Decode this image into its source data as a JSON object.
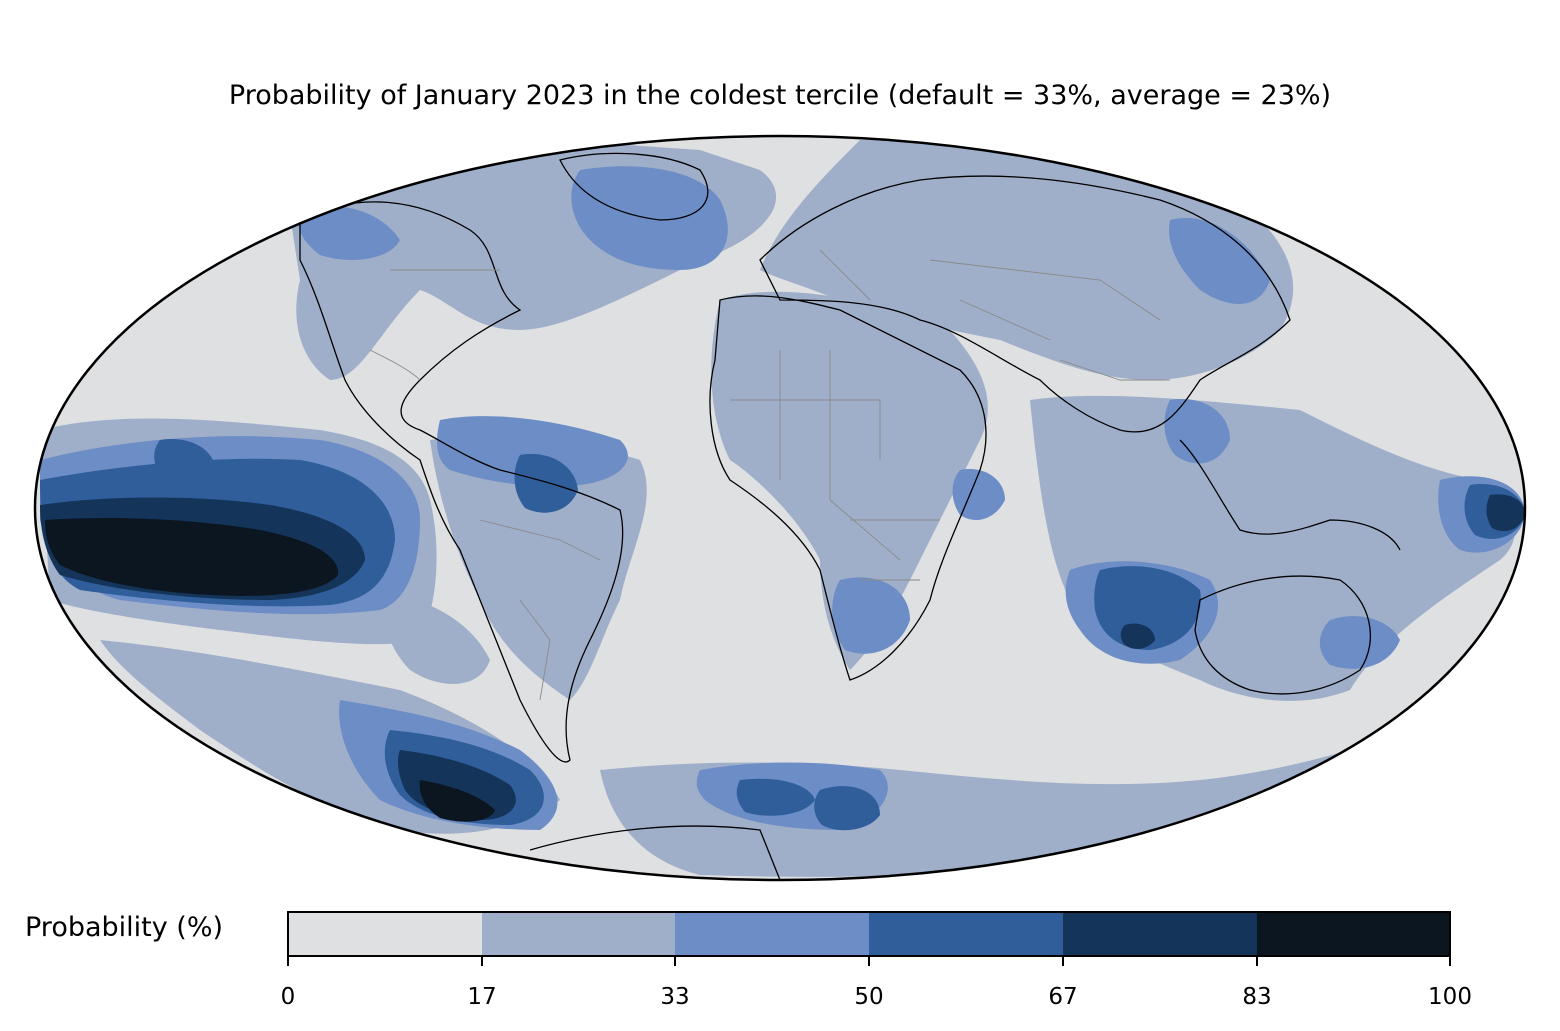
{
  "title": "Probability of January 2023 in the coldest tercile (default = 33%, average = 23%)",
  "colorbar": {
    "label": "Probability (%)",
    "ticks": [
      "0",
      "17",
      "33",
      "50",
      "67",
      "83",
      "100"
    ],
    "bins": [
      {
        "from": 0,
        "to": 17,
        "color": "#dfe0e2"
      },
      {
        "from": 17,
        "to": 33,
        "color": "#a0afc9"
      },
      {
        "from": 33,
        "to": 50,
        "color": "#6c8dc6"
      },
      {
        "from": 50,
        "to": 67,
        "color": "#2f5e9b"
      },
      {
        "from": 67,
        "to": 83,
        "color": "#14345a"
      },
      {
        "from": 83,
        "to": 100,
        "color": "#0b1621"
      }
    ]
  },
  "map": {
    "projection": "Mollweide",
    "background_color": "#dfe0e2",
    "coastline_color": "#000000",
    "border_color": "#8a8a8a"
  }
}
